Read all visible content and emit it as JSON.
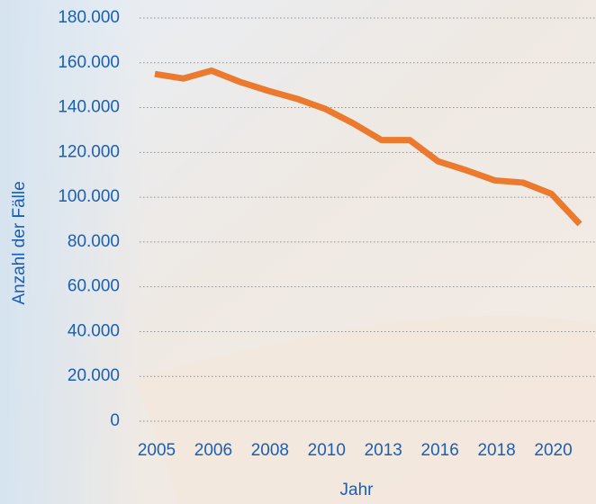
{
  "chart_data": {
    "type": "line",
    "x_label": "Jahr",
    "y_label": "Anzahl der Fälle",
    "categories": [
      "2005",
      null,
      "2006",
      null,
      "2008",
      null,
      "2010",
      null,
      "2013",
      null,
      "2016",
      null,
      "2018",
      null,
      "2020",
      null
    ],
    "series": [
      {
        "color": "#ec7a2e",
        "values": [
          155000,
          153000,
          156500,
          151500,
          147500,
          144000,
          139500,
          133000,
          125500,
          125500,
          116000,
          112000,
          107500,
          106500,
          101500,
          88000
        ]
      }
    ],
    "ylim": [
      0,
      180000
    ],
    "yticks": [
      0,
      {
        "value": 20000,
        "label": "20.000"
      },
      {
        "value": 40000,
        "label": "40.000"
      },
      {
        "value": 60000,
        "label": "60.000"
      },
      {
        "value": 80000,
        "label": "80.000"
      },
      {
        "value": 100000,
        "label": "100.000"
      },
      {
        "value": 120000,
        "label": "120.000"
      },
      {
        "value": 140000,
        "label": "140.000"
      },
      {
        "value": 160000,
        "label": "160.000"
      },
      {
        "value": 180000,
        "label": "180.000"
      }
    ],
    "grid": true
  }
}
